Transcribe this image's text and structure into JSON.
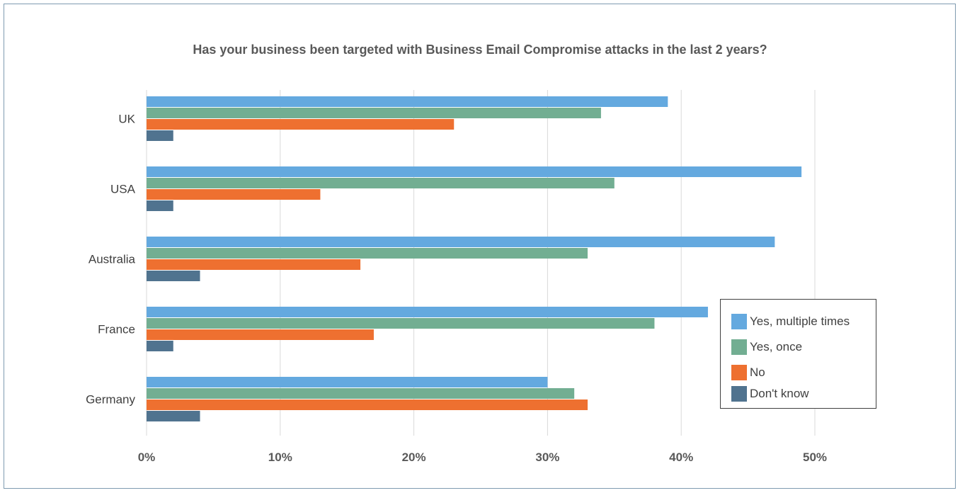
{
  "chart_data": {
    "type": "bar",
    "orientation": "horizontal",
    "title": "Has your business been targeted with Business Email Compromise attacks in the last 2 years?",
    "categories": [
      "UK",
      "USA",
      "Australia",
      "France",
      "Germany"
    ],
    "series": [
      {
        "name": "Yes, multiple times",
        "color": "#64a9df",
        "values": [
          39,
          49,
          47,
          42,
          30
        ]
      },
      {
        "name": "Yes, once",
        "color": "#72ae92",
        "values": [
          34,
          35,
          33,
          38,
          32
        ]
      },
      {
        "name": "No",
        "color": "#ee7030",
        "values": [
          23,
          13,
          16,
          17,
          33
        ]
      },
      {
        "name": "Don't know",
        "color": "#50738f",
        "values": [
          2,
          2,
          4,
          2,
          4
        ]
      }
    ],
    "x_ticks": [
      "0%",
      "10%",
      "20%",
      "30%",
      "40%",
      "50%"
    ],
    "xlim": [
      0,
      50
    ],
    "grid": true,
    "legend_position": "right"
  }
}
